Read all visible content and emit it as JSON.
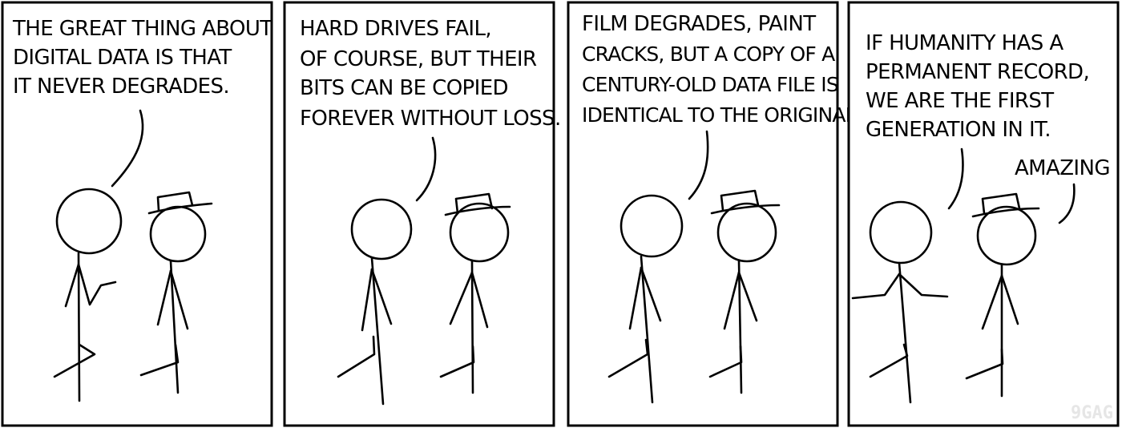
{
  "panels": [
    {
      "caption_lines": [
        "THE GREAT THING ABOUT",
        "DIGITAL DATA IS THAT",
        "IT NEVER DEGRADES."
      ]
    },
    {
      "caption_lines": [
        "HARD DRIVES FAIL,",
        "OF COURSE, BUT THEIR",
        "BITS CAN BE COPIED",
        "FOREVER WITHOUT LOSS."
      ]
    },
    {
      "caption_lines": [
        "FILM DEGRADES, PAINT",
        "CRACKS, BUT A COPY OF A",
        "CENTURY-OLD DATA FILE IS",
        "IDENTICAL TO THE ORIGINAL"
      ]
    },
    {
      "caption_lines": [
        "IF HUMANITY HAS A",
        "PERMANENT RECORD,",
        "WE ARE THE FIRST",
        "GENERATION IN IT."
      ],
      "reply": "AMAZING"
    }
  ],
  "watermark": "9GAG"
}
